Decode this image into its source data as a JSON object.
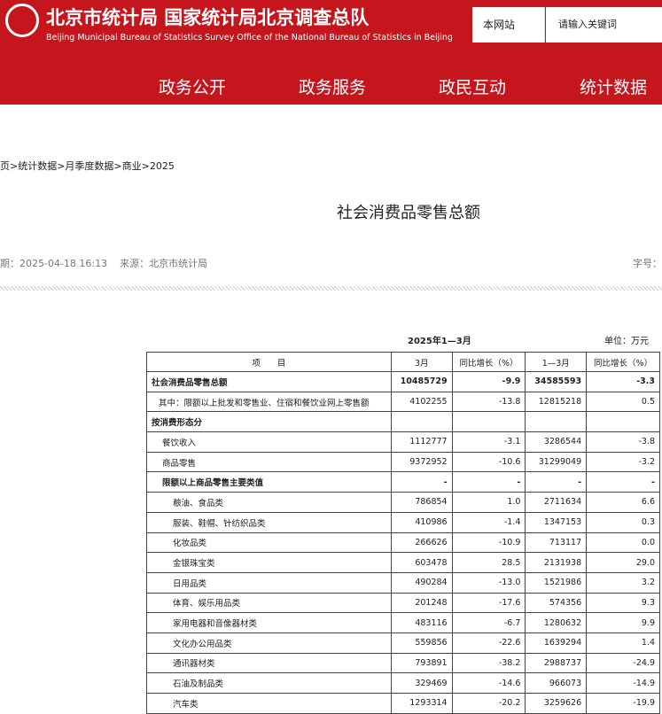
{
  "header": {
    "title": "北京市统计局 国家统计局北京调查总队",
    "subtitle": "Beijing Municipal Bureau of Statistics  Survey Office of the National Bureau of Statistics in Beijing",
    "search_scope": "本网站",
    "search_placeholder": "请输入关键词"
  },
  "nav": [
    "政务公开",
    "政务服务",
    "政民互动",
    "统计数据"
  ],
  "breadcrumb": "页>统计数据>月季度数据>商业>2025",
  "article": {
    "title": "社会消费品零售总额",
    "meta": "期：2025-04-18 16:13    来源：北京市统计局",
    "font_size": "字号："
  },
  "table": {
    "caption": "2025年1—3月",
    "unit": "单位：万元",
    "header": [
      "项　　目",
      "3月",
      "同比增长（%）",
      "1—3月",
      "同比增长（%）"
    ],
    "rows": [
      [
        "社会消费品零售总额",
        "10485729",
        "-9.9",
        "34585593",
        "-3.3"
      ],
      [
        "其中：限额以上批发和零售业、住宿和餐饮业网上零售额",
        "4102255",
        "-13.8",
        "12815218",
        "0.5"
      ],
      [
        "按消费形态分",
        "",
        "",
        "",
        ""
      ],
      [
        "餐饮收入",
        "1112777",
        "-3.1",
        "3286544",
        "-3.8"
      ],
      [
        "商品零售",
        "9372952",
        "-10.6",
        "31299049",
        "-3.2"
      ],
      [
        "限额以上商品零售主要类值",
        "-",
        "-",
        "-",
        "-"
      ],
      [
        "粮油、食品类",
        "786854",
        "1.0",
        "2711634",
        "6.6"
      ],
      [
        "服装、鞋帽、针纺织品类",
        "410986",
        "-1.4",
        "1347153",
        "0.3"
      ],
      [
        "化妆品类",
        "266626",
        "-10.9",
        "713117",
        "0.0"
      ],
      [
        "金银珠宝类",
        "603478",
        "28.5",
        "2131938",
        "29.0"
      ],
      [
        "日用品类",
        "490284",
        "-13.0",
        "1521986",
        "3.2"
      ],
      [
        "体育、娱乐用品类",
        "201248",
        "-17.6",
        "574356",
        "9.3"
      ],
      [
        "家用电器和音像器材类",
        "483116",
        "-6.7",
        "1280632",
        "9.9"
      ],
      [
        "文化办公用品类",
        "559856",
        "-22.6",
        "1639294",
        "1.4"
      ],
      [
        "通讯器材类",
        "793891",
        "-38.2",
        "2988737",
        "-24.9"
      ],
      [
        "石油及制品类",
        "329469",
        "-14.6",
        "966073",
        "-14.9"
      ],
      [
        "汽车类",
        "1293314",
        "-20.2",
        "3259626",
        "-19.9"
      ]
    ]
  }
}
